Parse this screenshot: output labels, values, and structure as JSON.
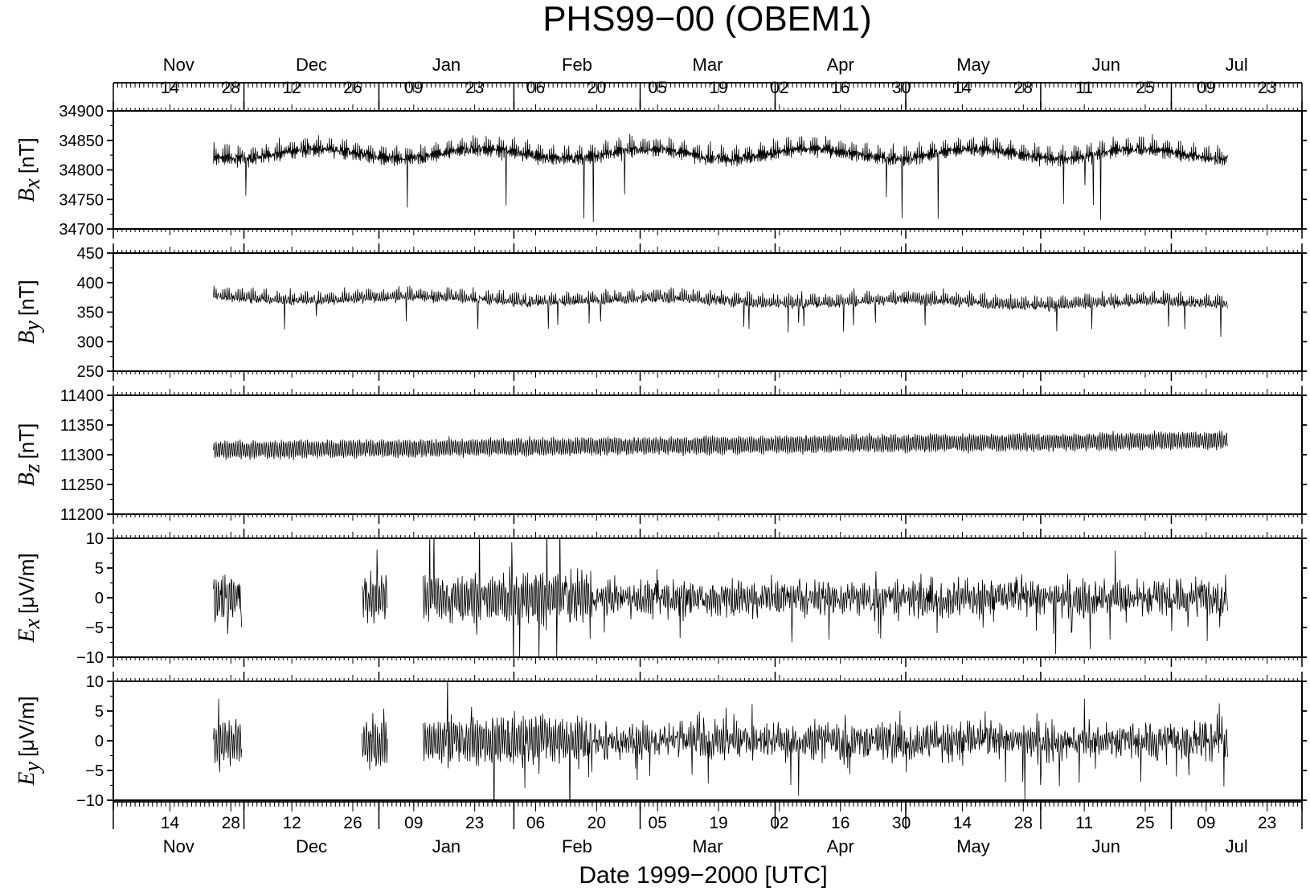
{
  "chart_data": {
    "type": "line",
    "title": "PHS99−00 (OBEM1)",
    "xlabel": "Date 1999−2000 [UTC]",
    "x_axis": {
      "day_ticks": [
        "14",
        "28",
        "12",
        "26",
        "09",
        "23",
        "06",
        "20",
        "05",
        "19",
        "02",
        "16",
        "30",
        "14",
        "28",
        "11",
        "25",
        "09",
        "23"
      ],
      "month_labels": [
        "Nov",
        "Dec",
        "Jan",
        "Feb",
        "Mar",
        "Apr",
        "May",
        "Jun",
        "Jul"
      ],
      "data_start": "1999-11-24",
      "data_end": "2000-07-14"
    },
    "panels": [
      {
        "key": "Bx",
        "symbol": "B",
        "subscript": "x",
        "unit": "[nT]",
        "ylim": [
          34700,
          34900
        ],
        "yticks": [
          "34700",
          "34750",
          "34800",
          "34850",
          "34900"
        ],
        "baseline": 34820
      },
      {
        "key": "By",
        "symbol": "B",
        "subscript": "y",
        "unit": "[nT]",
        "ylim": [
          250,
          450
        ],
        "yticks": [
          "250",
          "300",
          "350",
          "400",
          "450"
        ],
        "baseline": 372
      },
      {
        "key": "Bz",
        "symbol": "B",
        "subscript": "z",
        "unit": "[nT]",
        "ylim": [
          11200,
          11400
        ],
        "yticks": [
          "11200",
          "11250",
          "11300",
          "11350",
          "11400"
        ],
        "baseline": 11318
      },
      {
        "key": "Ex",
        "symbol": "E",
        "subscript": "x",
        "unit": "[μV/m]",
        "ylim": [
          -10,
          10
        ],
        "yticks": [
          "−10",
          "−5",
          "0",
          "5",
          "10"
        ],
        "baseline": 0
      },
      {
        "key": "Ey",
        "symbol": "E",
        "subscript": "y",
        "unit": "[μV/m]",
        "ylim": [
          -10,
          10
        ],
        "yticks": [
          "−10",
          "−5",
          "0",
          "5",
          "10"
        ],
        "baseline": 0
      }
    ]
  }
}
